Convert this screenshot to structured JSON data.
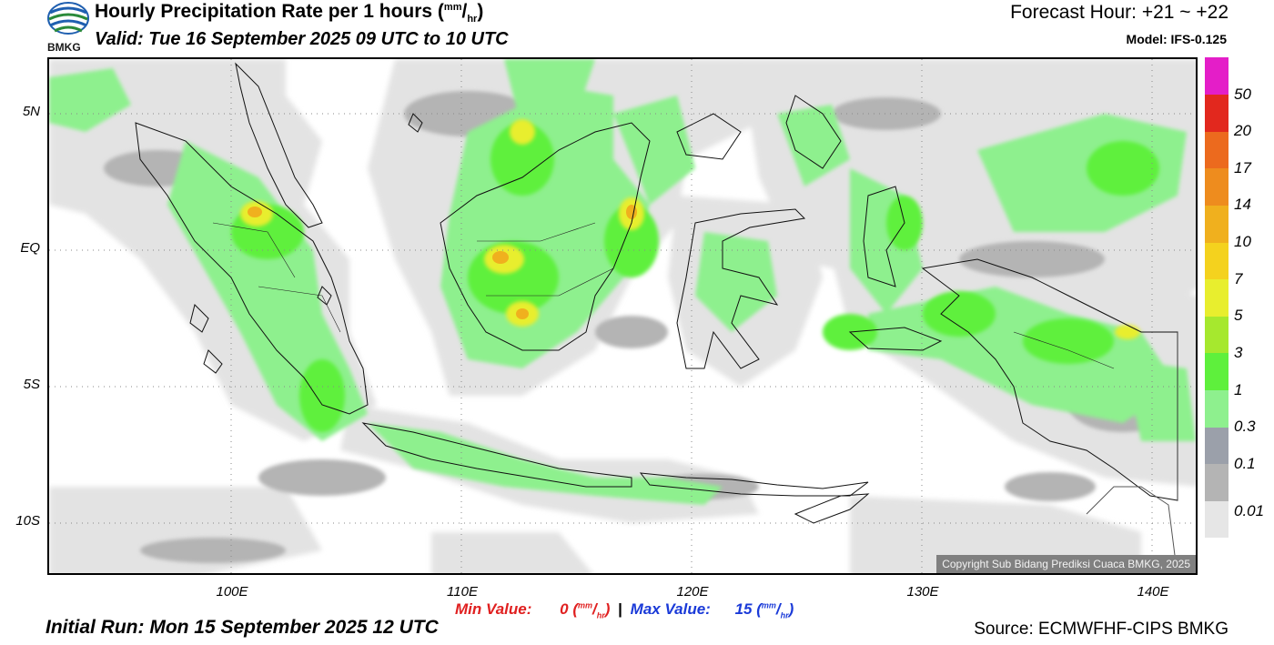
{
  "header": {
    "title": "Hourly Precipitation Rate per 1 hours",
    "title_unit_num": "mm",
    "title_unit_den": "hr",
    "valid": "Valid: Tue 16 September 2025 09 UTC to 10 UTC",
    "forecast_hour": "Forecast Hour: +21 ~ +22",
    "model": "Model: IFS-0.125"
  },
  "logo": {
    "text": "BMKG",
    "icon": "bmkg-globe-logo"
  },
  "map": {
    "lat_labels": [
      "5N",
      "EQ",
      "5S",
      "10S"
    ],
    "lon_labels": [
      "100E",
      "110E",
      "120E",
      "130E",
      "140E"
    ],
    "copyright": "Copyright Sub Bidang Prediksi Cuaca BMKG, 2025"
  },
  "colorbar": {
    "levels": [
      "0.01",
      "0.1",
      "0.3",
      "1",
      "3",
      "5",
      "7",
      "10",
      "14",
      "17",
      "20",
      "50"
    ],
    "colors": [
      "#e6e6e6",
      "#b4b4b4",
      "#9ba0aa",
      "#8ef08e",
      "#5ef03c",
      "#a6e82e",
      "#e8ee2e",
      "#f4d21e",
      "#f0b01e",
      "#ee8c1e",
      "#ec6a1e",
      "#e2281e",
      "#e41ec8"
    ]
  },
  "footer": {
    "min_label": "Min Value:",
    "min_value": "0",
    "max_label": "Max Value:",
    "max_value": "15",
    "unit_num": "mm",
    "unit_den": "hr",
    "separator": "|",
    "initial_run": "Initial Run: Mon 15 September 2025 12 UTC",
    "source": "Source: ECMWFHF-CIPS BMKG"
  }
}
